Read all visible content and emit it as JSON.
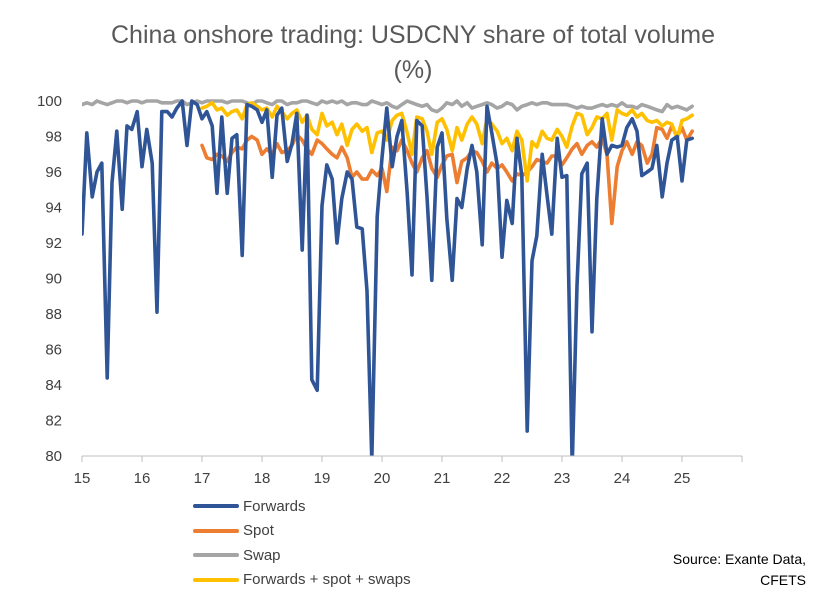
{
  "chart_data": {
    "type": "line",
    "title": "China onshore trading: USDCNY share of total volume (%)",
    "title_lines": [
      "China onshore trading: USDCNY share of total volume",
      "(%)"
    ],
    "xlabel": "",
    "ylabel": "",
    "xlim": [
      15,
      26
    ],
    "ylim": [
      80,
      100
    ],
    "x_ticks": [
      15,
      16,
      17,
      18,
      19,
      20,
      21,
      22,
      23,
      24,
      25
    ],
    "x_tick_labels": [
      "15",
      "16",
      "17",
      "18",
      "19",
      "20",
      "21",
      "22",
      "23",
      "24",
      "25"
    ],
    "y_ticks": [
      80,
      82,
      84,
      86,
      88,
      90,
      92,
      94,
      96,
      98,
      100
    ],
    "y_tick_labels": [
      "80",
      "82",
      "84",
      "86",
      "88",
      "90",
      "92",
      "94",
      "96",
      "98",
      "100"
    ],
    "grid": false,
    "legend_position": "bottom-left",
    "source": [
      "Source: Exante Data,",
      "CFETS"
    ],
    "series": [
      {
        "name": "Forwards",
        "color": "#2F5597",
        "x": [
          15.0,
          15.08,
          15.17,
          15.25,
          15.33,
          15.42,
          15.5,
          15.58,
          15.67,
          15.75,
          15.83,
          15.92,
          16.0,
          16.08,
          16.17,
          16.25,
          16.33,
          16.42,
          16.5,
          16.58,
          16.67,
          16.75,
          16.83,
          16.92,
          17.0,
          17.08,
          17.17,
          17.25,
          17.33,
          17.42,
          17.5,
          17.58,
          17.67,
          17.75,
          17.83,
          17.92,
          18.0,
          18.08,
          18.17,
          18.25,
          18.33,
          18.42,
          18.5,
          18.58,
          18.67,
          18.75,
          18.83,
          18.92,
          19.0,
          19.08,
          19.17,
          19.25,
          19.33,
          19.42,
          19.5,
          19.58,
          19.67,
          19.75,
          19.83,
          19.92,
          20.0,
          20.08,
          20.17,
          20.25,
          20.33,
          20.42,
          20.5,
          20.58,
          20.67,
          20.75,
          20.83,
          20.92,
          21.0,
          21.08,
          21.17,
          21.25,
          21.33,
          21.42,
          21.5,
          21.58,
          21.67,
          21.75,
          21.83,
          21.92,
          22.0,
          22.08,
          22.17,
          22.25,
          22.33,
          22.42,
          22.5,
          22.58,
          22.67,
          22.75,
          22.83,
          22.92,
          23.0,
          23.08,
          23.17,
          23.25,
          23.33,
          23.42,
          23.5,
          23.58,
          23.67,
          23.75,
          23.83,
          23.92,
          24.0,
          24.08,
          24.17,
          24.25,
          24.33,
          24.42,
          24.5,
          24.58,
          24.67,
          24.75,
          24.83,
          24.92,
          25.0,
          25.08,
          25.17
        ],
        "values": [
          92.5,
          98.2,
          94.6,
          96.0,
          96.5,
          84.4,
          95.4,
          98.3,
          93.9,
          98.6,
          98.4,
          99.4,
          96.3,
          98.4,
          96.5,
          88.1,
          99.4,
          99.4,
          99.1,
          99.6,
          100.0,
          97.5,
          100.0,
          99.8,
          99.0,
          99.4,
          98.6,
          94.8,
          99.1,
          94.8,
          97.9,
          98.1,
          91.3,
          99.8,
          99.7,
          99.5,
          98.8,
          99.5,
          95.7,
          99.2,
          99.6,
          96.6,
          97.6,
          99.3,
          91.6,
          99.2,
          84.3,
          83.7,
          94.1,
          96.4,
          95.6,
          92.0,
          94.5,
          96.0,
          95.6,
          92.9,
          92.8,
          89.3,
          79.8,
          93.5,
          96.8,
          99.6,
          96.3,
          98.0,
          98.9,
          94.8,
          90.2,
          98.9,
          98.6,
          94.6,
          89.9,
          97.4,
          98.2,
          93.4,
          89.9,
          94.5,
          94.0,
          96.2,
          97.5,
          96.0,
          91.9,
          99.7,
          98.2,
          96.4,
          91.2,
          94.4,
          93.1,
          97.9,
          95.8,
          81.4,
          91.0,
          92.4,
          97.0,
          94.7,
          92.5,
          97.9,
          95.7,
          95.8,
          79.4,
          89.6,
          95.9,
          96.5,
          87.0,
          94.5,
          99.0,
          97.0,
          97.5,
          97.4,
          97.5,
          98.5,
          99.0,
          98.3,
          95.8,
          96.0,
          96.2,
          97.5,
          94.6,
          96.5,
          97.8,
          98.0,
          95.5,
          97.8,
          97.9
        ]
      },
      {
        "name": "Spot",
        "color": "#ED7D31",
        "x": [
          17.0,
          17.08,
          17.17,
          17.25,
          17.33,
          17.42,
          17.5,
          17.58,
          17.67,
          17.75,
          17.83,
          17.92,
          18.0,
          18.08,
          18.17,
          18.25,
          18.33,
          18.42,
          18.5,
          18.58,
          18.67,
          18.75,
          18.83,
          18.92,
          19.0,
          19.08,
          19.17,
          19.25,
          19.33,
          19.42,
          19.5,
          19.58,
          19.67,
          19.75,
          19.83,
          19.92,
          20.0,
          20.08,
          20.17,
          20.25,
          20.33,
          20.42,
          20.5,
          20.58,
          20.67,
          20.75,
          20.83,
          20.92,
          21.0,
          21.08,
          21.17,
          21.25,
          21.33,
          21.42,
          21.5,
          21.58,
          21.67,
          21.75,
          21.83,
          21.92,
          22.0,
          22.08,
          22.17,
          22.25,
          22.33,
          22.42,
          22.5,
          22.58,
          22.67,
          22.75,
          22.83,
          22.92,
          23.0,
          23.08,
          23.17,
          23.25,
          23.33,
          23.42,
          23.5,
          23.58,
          23.67,
          23.75,
          23.83,
          23.92,
          24.0,
          24.08,
          24.17,
          24.25,
          24.33,
          24.42,
          24.5,
          24.58,
          24.67,
          24.75,
          24.83,
          24.92,
          25.0,
          25.08,
          25.17
        ],
        "values": [
          97.5,
          96.8,
          96.7,
          97.0,
          96.9,
          96.6,
          97.1,
          97.4,
          97.3,
          97.8,
          98.0,
          97.8,
          97.0,
          97.3,
          97.0,
          97.6,
          97.1,
          97.2,
          97.5,
          98.1,
          97.8,
          97.3,
          97.0,
          97.8,
          97.6,
          97.3,
          97.0,
          96.8,
          97.4,
          96.8,
          95.7,
          96.0,
          95.6,
          95.6,
          96.1,
          95.8,
          96.2,
          94.9,
          97.4,
          97.2,
          97.8,
          97.2,
          96.5,
          96.0,
          96.8,
          97.2,
          96.2,
          95.7,
          96.4,
          96.9,
          97.0,
          95.4,
          96.6,
          96.8,
          97.2,
          97.1,
          96.6,
          96.0,
          96.5,
          96.2,
          96.4,
          96.0,
          95.5,
          95.9,
          95.8,
          96.0,
          96.3,
          96.7,
          96.6,
          96.5,
          96.9,
          96.9,
          96.4,
          96.8,
          97.3,
          97.6,
          97.0,
          97.5,
          97.7,
          97.4,
          97.9,
          97.0,
          93.1,
          96.3,
          97.2,
          97.7,
          97.0,
          97.7,
          97.5,
          96.5,
          97.0,
          98.5,
          98.4,
          97.9,
          98.6,
          98.0,
          98.5,
          97.8,
          98.3
        ]
      },
      {
        "name": "Swap",
        "color": "#A5A5A5",
        "x": [
          15.0,
          15.08,
          15.17,
          15.25,
          15.33,
          15.42,
          15.5,
          15.58,
          15.67,
          15.75,
          15.83,
          15.92,
          16.0,
          16.08,
          16.17,
          16.25,
          16.33,
          16.42,
          16.5,
          16.58,
          16.67,
          16.75,
          16.83,
          16.92,
          17.0,
          17.08,
          17.17,
          17.25,
          17.33,
          17.42,
          17.5,
          17.58,
          17.67,
          17.75,
          17.83,
          17.92,
          18.0,
          18.08,
          18.17,
          18.25,
          18.33,
          18.42,
          18.5,
          18.58,
          18.67,
          18.75,
          18.83,
          18.92,
          19.0,
          19.08,
          19.17,
          19.25,
          19.33,
          19.42,
          19.5,
          19.58,
          19.67,
          19.75,
          19.83,
          19.92,
          20.0,
          20.08,
          20.17,
          20.25,
          20.33,
          20.42,
          20.5,
          20.58,
          20.67,
          20.75,
          20.83,
          20.92,
          21.0,
          21.08,
          21.17,
          21.25,
          21.33,
          21.42,
          21.5,
          21.58,
          21.67,
          21.75,
          21.83,
          21.92,
          22.0,
          22.08,
          22.17,
          22.25,
          22.33,
          22.42,
          22.5,
          22.58,
          22.67,
          22.75,
          22.83,
          22.92,
          23.0,
          23.08,
          23.17,
          23.25,
          23.33,
          23.42,
          23.5,
          23.58,
          23.67,
          23.75,
          23.83,
          23.92,
          24.0,
          24.08,
          24.17,
          24.25,
          24.33,
          24.42,
          24.5,
          24.58,
          24.67,
          24.75,
          24.83,
          24.92,
          25.0,
          25.08,
          25.17
        ],
        "values": [
          99.8,
          99.9,
          99.8,
          100.0,
          99.9,
          99.8,
          99.9,
          100.0,
          100.0,
          99.9,
          100.0,
          100.0,
          99.9,
          100.0,
          100.0,
          100.0,
          99.9,
          99.9,
          99.9,
          100.0,
          100.0,
          99.8,
          99.9,
          100.0,
          99.9,
          100.0,
          100.0,
          100.0,
          100.0,
          99.9,
          100.0,
          100.0,
          100.0,
          99.9,
          99.8,
          100.0,
          100.0,
          99.9,
          99.8,
          100.0,
          100.0,
          99.8,
          99.9,
          99.9,
          100.0,
          100.0,
          99.9,
          99.8,
          100.0,
          99.9,
          100.0,
          99.9,
          100.0,
          99.8,
          99.9,
          99.9,
          99.8,
          99.8,
          100.0,
          99.9,
          99.8,
          99.9,
          99.7,
          99.6,
          99.8,
          100.0,
          99.9,
          99.8,
          99.7,
          99.8,
          99.5,
          99.4,
          99.6,
          99.9,
          99.8,
          100.0,
          99.7,
          99.9,
          99.6,
          99.7,
          99.8,
          99.9,
          99.8,
          99.6,
          99.7,
          99.9,
          99.8,
          99.5,
          99.7,
          99.8,
          99.9,
          99.8,
          99.9,
          99.9,
          99.8,
          99.8,
          99.8,
          99.8,
          99.7,
          99.6,
          99.7,
          99.6,
          99.6,
          99.7,
          99.8,
          99.7,
          99.8,
          99.7,
          99.9,
          99.7,
          99.7,
          99.6,
          99.8,
          99.7,
          99.6,
          99.5,
          99.4,
          99.8,
          99.6,
          99.7,
          99.6,
          99.5,
          99.7
        ]
      },
      {
        "name": "Forwards + spot + swaps",
        "color": "#FFC000",
        "x": [
          17.0,
          17.08,
          17.17,
          17.25,
          17.33,
          17.42,
          17.5,
          17.58,
          17.67,
          17.75,
          17.83,
          17.92,
          18.0,
          18.08,
          18.17,
          18.25,
          18.33,
          18.42,
          18.5,
          18.58,
          18.67,
          18.75,
          18.83,
          18.92,
          19.0,
          19.08,
          19.17,
          19.25,
          19.33,
          19.42,
          19.5,
          19.58,
          19.67,
          19.75,
          19.83,
          19.92,
          20.0,
          20.08,
          20.17,
          20.25,
          20.33,
          20.42,
          20.5,
          20.58,
          20.67,
          20.75,
          20.83,
          20.92,
          21.0,
          21.08,
          21.17,
          21.25,
          21.33,
          21.42,
          21.5,
          21.58,
          21.67,
          21.75,
          21.83,
          21.92,
          22.0,
          22.08,
          22.17,
          22.25,
          22.33,
          22.42,
          22.5,
          22.58,
          22.67,
          22.75,
          22.83,
          22.92,
          23.0,
          23.08,
          23.17,
          23.25,
          23.33,
          23.42,
          23.5,
          23.58,
          23.67,
          23.75,
          23.83,
          23.92,
          24.0,
          24.08,
          24.17,
          24.25,
          24.33,
          24.42,
          24.5,
          24.58,
          24.67,
          24.75,
          24.83,
          24.92,
          25.0,
          25.08,
          25.17
        ],
        "values": [
          99.6,
          99.7,
          99.9,
          99.5,
          99.6,
          99.2,
          99.4,
          99.5,
          99.0,
          99.8,
          99.9,
          99.7,
          99.5,
          99.6,
          99.1,
          99.7,
          99.4,
          99.0,
          99.3,
          99.5,
          98.8,
          99.2,
          98.4,
          98.1,
          99.3,
          98.6,
          98.8,
          98.1,
          98.7,
          97.5,
          98.4,
          98.7,
          98.3,
          98.5,
          97.1,
          98.2,
          98.3,
          97.8,
          98.9,
          99.2,
          99.3,
          98.2,
          97.0,
          99.1,
          99.0,
          98.3,
          97.0,
          98.8,
          99.0,
          98.4,
          97.2,
          98.5,
          97.8,
          98.7,
          99.1,
          98.7,
          97.6,
          99.0,
          98.7,
          98.3,
          97.6,
          97.9,
          97.2,
          98.3,
          97.8,
          95.5,
          97.7,
          97.4,
          98.3,
          97.9,
          97.8,
          98.4,
          98.0,
          97.4,
          98.6,
          99.3,
          99.2,
          98.1,
          98.5,
          99.1,
          99.0,
          99.3,
          97.8,
          99.5,
          99.3,
          99.2,
          99.5,
          99.1,
          99.3,
          98.9,
          98.8,
          98.9,
          98.6,
          98.8,
          98.7,
          97.9,
          98.9,
          99.0,
          99.2
        ]
      }
    ]
  }
}
